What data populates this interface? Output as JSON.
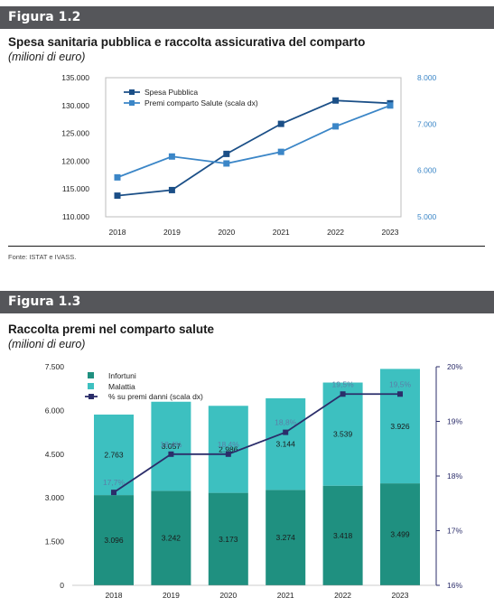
{
  "figures": {
    "fig1": {
      "label": "Figura 1.2",
      "title": "Spesa sanitaria pubblica e raccolta assicurativa del comparto",
      "subtitle": "(milioni di euro)",
      "source": "Fonte: ISTAT e IVASS."
    },
    "fig2": {
      "label": "Figura 1.3",
      "title": "Raccolta premi nel comparto salute",
      "subtitle": "(milioni di euro)"
    }
  },
  "colors": {
    "header_bg": "#55565a",
    "spesa": "#1b4f87",
    "premi": "#3b86c7",
    "infortuni": "#1f9080",
    "malattia": "#3dc0c0",
    "pct_line": "#2b2d6a",
    "right_axis1": "#3b86c7",
    "right_axis2": "#2b2d6a"
  },
  "chart_data": [
    {
      "type": "line",
      "categories": [
        "2018",
        "2019",
        "2020",
        "2021",
        "2022",
        "2023"
      ],
      "series": [
        {
          "name": "Spesa Pubblica",
          "axis": "left",
          "values": [
            113800,
            114800,
            121300,
            126700,
            130900,
            130400
          ]
        },
        {
          "name": "Premi comparto Salute (scala dx)",
          "axis": "right",
          "values": [
            5850,
            6300,
            6150,
            6400,
            6950,
            7400
          ]
        }
      ],
      "y_left": {
        "ylim": [
          110000,
          135000
        ],
        "ticks": [
          "110.000",
          "115.000",
          "120.000",
          "125.000",
          "130.000",
          "135.000"
        ]
      },
      "y_right": {
        "ylim": [
          5000,
          8000
        ],
        "ticks": [
          "5.000",
          "6.000",
          "7.000",
          "8.000"
        ]
      },
      "legend": "top-left",
      "grid": false
    },
    {
      "type": "bar",
      "stacked": true,
      "categories": [
        "2018",
        "2019",
        "2020",
        "2021",
        "2022",
        "2023"
      ],
      "series": [
        {
          "name": "Infortuni",
          "axis": "left",
          "values": [
            3096,
            3242,
            3173,
            3274,
            3418,
            3499
          ],
          "labels": [
            "3.096",
            "3.242",
            "3.173",
            "3.274",
            "3.418",
            "3.499"
          ]
        },
        {
          "name": "Malattia",
          "axis": "left",
          "values": [
            2763,
            3057,
            2986,
            3144,
            3539,
            3926
          ],
          "labels": [
            "2.763",
            "3.057",
            "2.986",
            "3.144",
            "3.539",
            "3.926"
          ]
        },
        {
          "name": "% su premi danni (scala dx)",
          "axis": "right",
          "type": "line",
          "values": [
            17.7,
            18.4,
            18.4,
            18.8,
            19.5,
            19.5
          ],
          "labels": [
            "17,7%",
            "18,4%",
            "18,4%",
            "18,8%",
            "19,5%",
            "19,5%"
          ]
        }
      ],
      "y_left": {
        "ylim": [
          0,
          7500
        ],
        "ticks": [
          "0",
          "1.500",
          "3.000",
          "4.500",
          "6.000",
          "7.500"
        ]
      },
      "y_right": {
        "ylim": [
          16,
          20
        ],
        "ticks": [
          "16%",
          "17%",
          "18%",
          "19%",
          "20%"
        ]
      },
      "legend": "top-left",
      "grid": false
    }
  ]
}
